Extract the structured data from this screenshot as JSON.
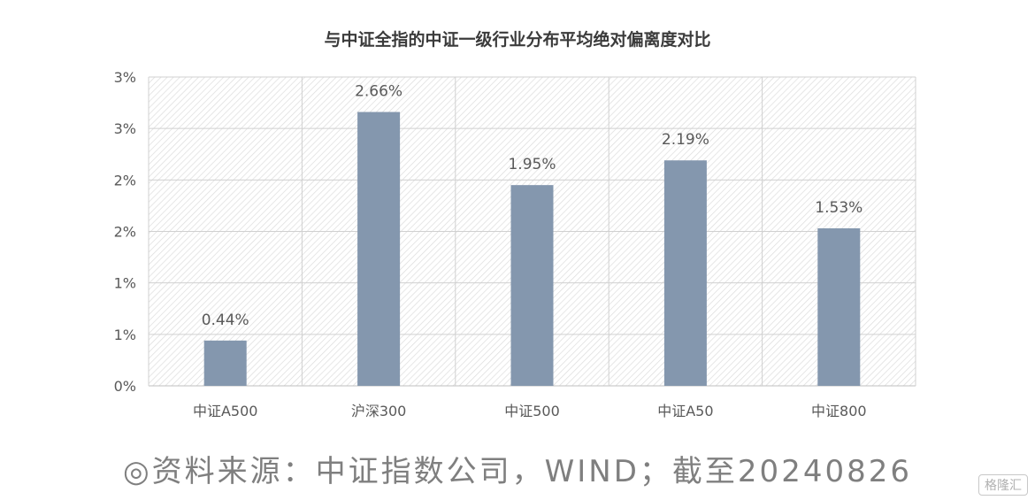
{
  "chart_data": {
    "type": "bar",
    "title": "与中证全指的中证一级行业分布平均绝对偏离度对比",
    "categories": [
      "中证A500",
      "沪深300",
      "中证500",
      "中证A50",
      "中证800"
    ],
    "values": [
      0.44,
      2.66,
      1.95,
      2.19,
      1.53
    ],
    "data_labels": [
      "0.44%",
      "2.66%",
      "1.95%",
      "2.19%",
      "1.53%"
    ],
    "y_tick_labels": [
      "0%",
      "1%",
      "1%",
      "2%",
      "2%",
      "3%",
      "3%"
    ],
    "ylim": [
      0,
      3
    ],
    "grid": true,
    "legend": "none",
    "bar_color": "#8497ae"
  },
  "source_text": "◎资料来源：中证指数公司，WIND；截至20240826",
  "watermark": "格隆汇"
}
